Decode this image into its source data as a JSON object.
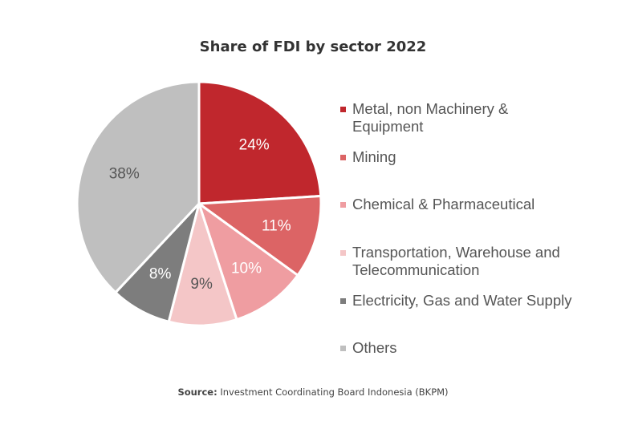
{
  "chart_data": {
    "type": "pie",
    "title": "Share of FDI by sector 2022",
    "slices": [
      {
        "label": "Metal, non Machinery & Equipment",
        "value": 24,
        "display": "24%",
        "color": "#c0272d",
        "text_color": "#ffffff"
      },
      {
        "label": "Mining",
        "value": 11,
        "display": "11%",
        "color": "#dc6465",
        "text_color": "#ffffff"
      },
      {
        "label": "Chemical & Pharmaceutical",
        "value": 10,
        "display": "10%",
        "color": "#ef9da1",
        "text_color": "#ffffff"
      },
      {
        "label": "Transportation, Warehouse and Telecommunication",
        "value": 9,
        "display": "9%",
        "color": "#f4c6c7",
        "text_color": "#555555"
      },
      {
        "label": "Electricity, Gas and Water Supply",
        "value": 8,
        "display": "8%",
        "color": "#7d7d7d",
        "text_color": "#ffffff"
      },
      {
        "label": "Others",
        "value": 38,
        "display": "38%",
        "color": "#bfbfbf",
        "text_color": "#555555"
      }
    ],
    "legend_position": "right"
  },
  "source": {
    "label": "Source:",
    "text": "Investment Coordinating Board Indonesia (BKPM)"
  }
}
